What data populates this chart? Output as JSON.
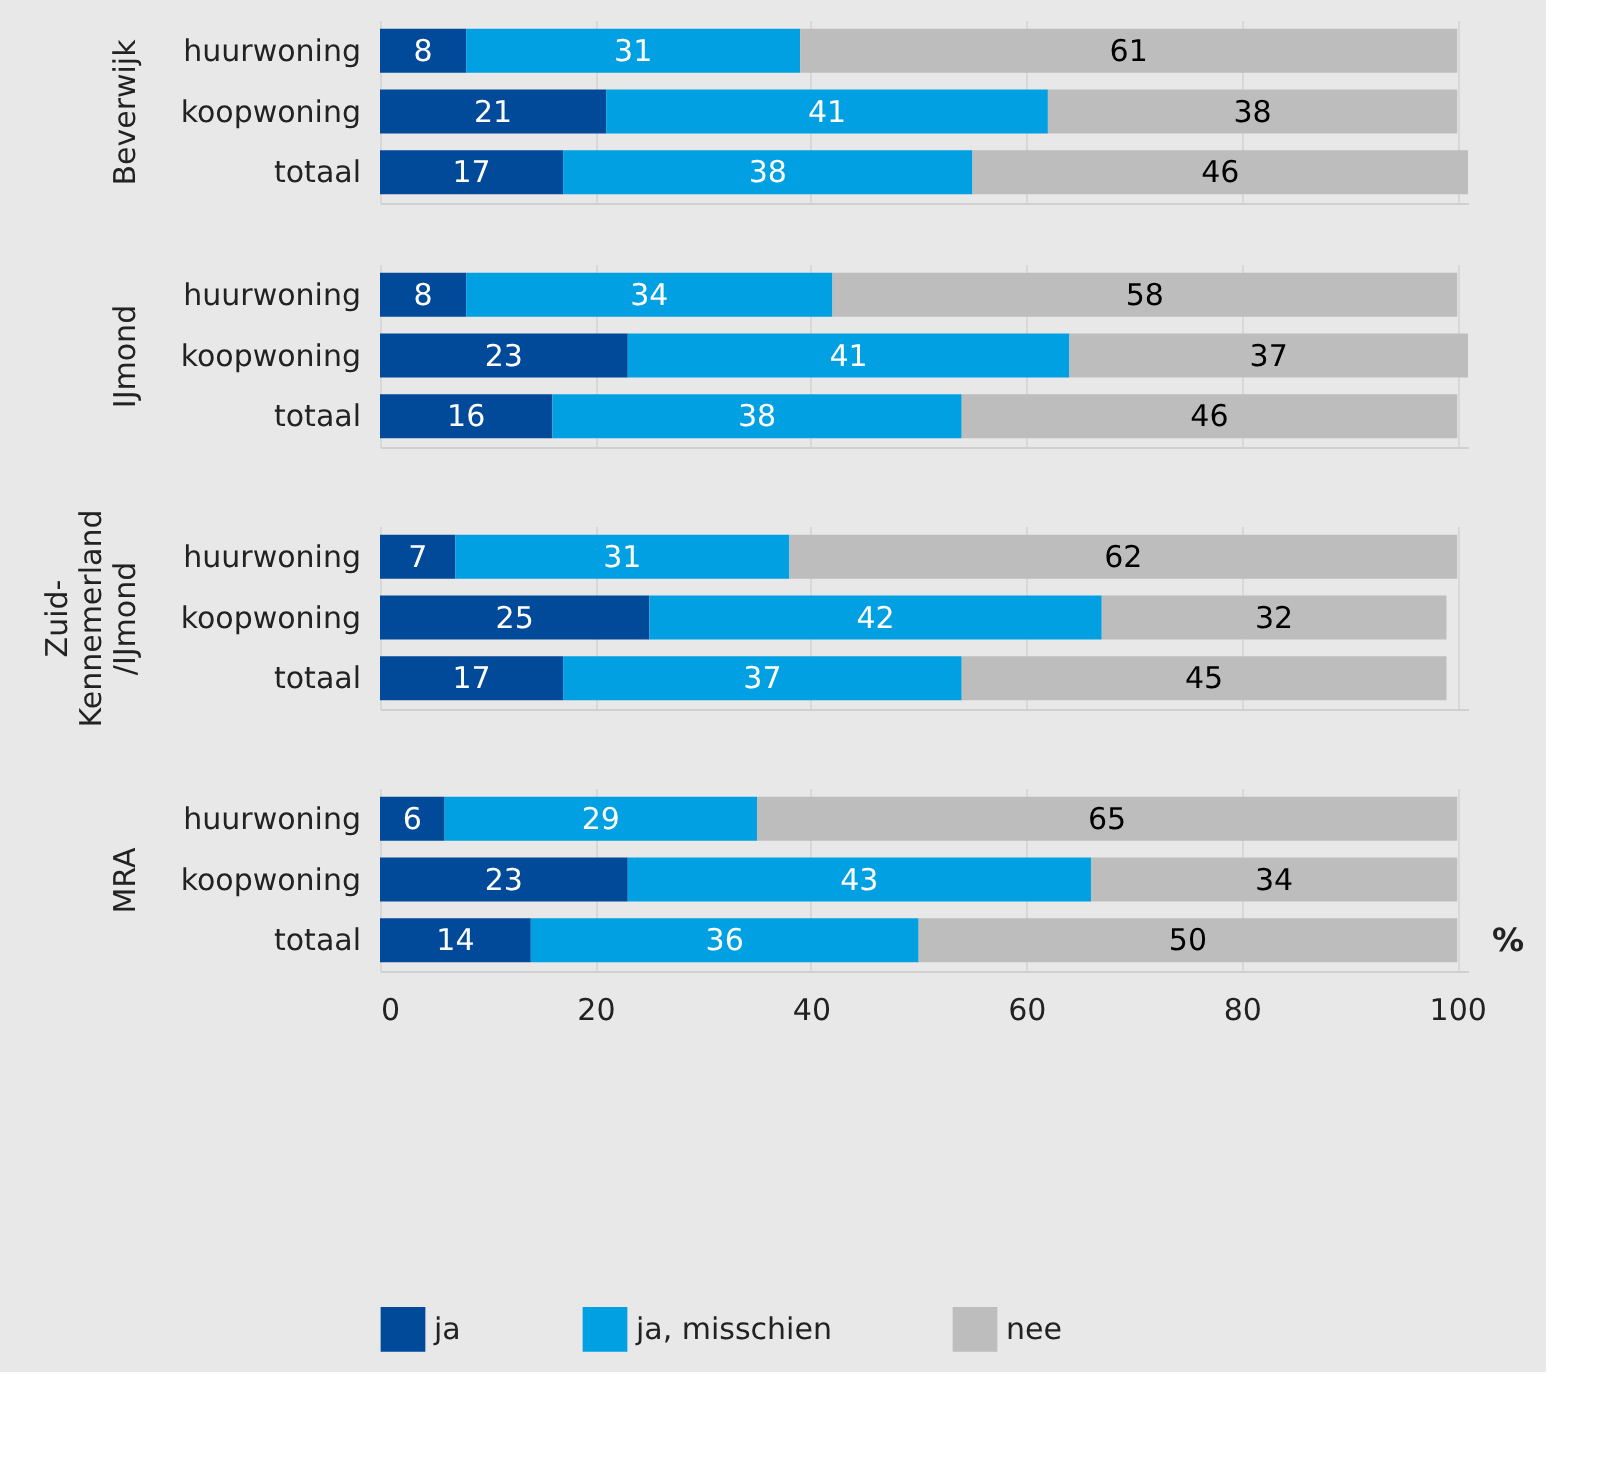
{
  "chart_data": [
    {
      "type": "bar",
      "orientation": "horizontal",
      "stacked": true,
      "ylabel": "Beverwijk",
      "categories": [
        "huurwoning",
        "koopwoning",
        "totaal"
      ],
      "series": [
        {
          "color": "#004a99",
          "values": [
            8,
            21,
            17
          ]
        },
        {
          "color": "#00a0e3",
          "values": [
            31,
            41,
            38
          ]
        },
        {
          "color": "#bdbdbd",
          "values": [
            61,
            38,
            46
          ]
        }
      ],
      "xlim": [
        0,
        101
      ],
      "xticks": [
        0,
        20,
        40,
        60,
        80,
        100
      ],
      "grid": "x",
      "data_labels": true,
      "tick_labels": "y"
    },
    {
      "type": "bar",
      "orientation": "horizontal",
      "stacked": true,
      "ylabel": "IJmond",
      "categories": [
        "huurwoning",
        "koopwoning",
        "totaal"
      ],
      "series": [
        {
          "color": "#004a99",
          "values": [
            8,
            23,
            16
          ]
        },
        {
          "color": "#00a0e3",
          "values": [
            34,
            41,
            38
          ]
        },
        {
          "color": "#bdbdbd",
          "values": [
            58,
            37,
            46
          ]
        }
      ],
      "xlim": [
        0,
        101
      ],
      "xticks": [
        0,
        20,
        40,
        60,
        80,
        100
      ],
      "grid": "x",
      "data_labels": true,
      "tick_labels": "y"
    },
    {
      "type": "bar",
      "orientation": "horizontal",
      "stacked": true,
      "ylabel": "Zuid-Kennemerland/IJmond",
      "categories": [
        "huurwoning",
        "koopwoning",
        "totaal"
      ],
      "series": [
        {
          "color": "#004a99",
          "values": [
            7,
            25,
            17
          ]
        },
        {
          "color": "#00a0e3",
          "values": [
            31,
            42,
            37
          ]
        },
        {
          "color": "#bdbdbd",
          "values": [
            62,
            32,
            45
          ]
        }
      ],
      "xlim": [
        0,
        101
      ],
      "xticks": [
        0,
        20,
        40,
        60,
        80,
        100
      ],
      "grid": "x",
      "data_labels": true,
      "tick_labels": "y"
    },
    {
      "type": "bar",
      "orientation": "horizontal",
      "stacked": true,
      "ylabel": "MRA",
      "categories": [
        "huurwoning",
        "koopwoning",
        "totaal"
      ],
      "series": [
        {
          "name": "ja",
          "color": "#004a99",
          "values": [
            6,
            23,
            14
          ]
        },
        {
          "name": "ja, misschien",
          "color": "#00a0e3",
          "values": [
            29,
            43,
            36
          ]
        },
        {
          "name": "nee",
          "color": "#bdbdbd",
          "values": [
            65,
            34,
            50
          ]
        }
      ],
      "xlim": [
        0,
        101
      ],
      "xticks": [
        0,
        20,
        40,
        60,
        80,
        100
      ],
      "grid": "x",
      "data_labels": true,
      "annotations": [
        "%"
      ],
      "legend": "bottom"
    }
  ]
}
